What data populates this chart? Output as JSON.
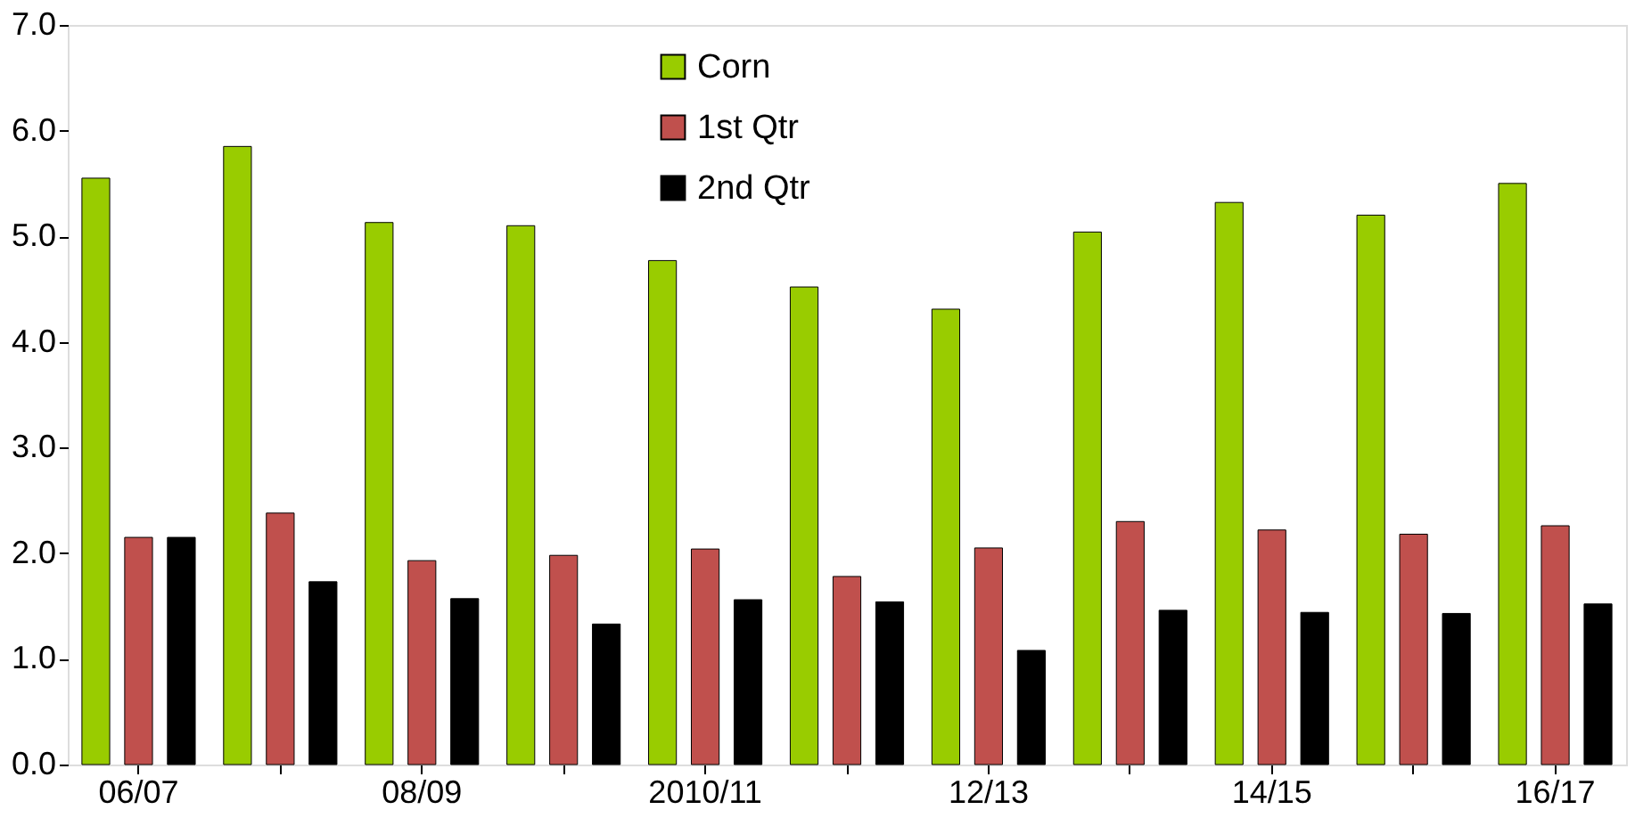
{
  "chart_data": {
    "type": "bar",
    "categories": [
      "06/07",
      null,
      "08/09",
      null,
      "2010/11",
      null,
      "12/13",
      null,
      "14/15",
      null,
      "16/17"
    ],
    "series": [
      {
        "name": "Corn",
        "color": "#99cc00",
        "values": [
          5.55,
          5.85,
          5.13,
          5.1,
          4.77,
          4.52,
          4.31,
          5.04,
          5.32,
          5.2,
          5.5
        ]
      },
      {
        "name": "1st Qtr",
        "color": "#c0504d",
        "values": [
          2.15,
          2.38,
          1.93,
          1.98,
          2.04,
          1.78,
          2.05,
          2.3,
          2.22,
          2.18,
          2.26
        ]
      },
      {
        "name": "2nd Qtr",
        "color": "#000000",
        "values": [
          2.15,
          1.73,
          1.57,
          1.33,
          1.56,
          1.54,
          1.08,
          1.46,
          1.44,
          1.43,
          1.52
        ]
      }
    ],
    "ylim": [
      0,
      7
    ],
    "yticks": [
      {
        "value": 0,
        "label": "0.0"
      },
      {
        "value": 1,
        "label": "1.0"
      },
      {
        "value": 2,
        "label": "2.0"
      },
      {
        "value": 3,
        "label": "3.0"
      },
      {
        "value": 4,
        "label": "4.0"
      },
      {
        "value": 5,
        "label": "5.0"
      },
      {
        "value": 6,
        "label": "6.0"
      },
      {
        "value": 7,
        "label": "7.0"
      }
    ],
    "grid": false,
    "legend": "top"
  }
}
